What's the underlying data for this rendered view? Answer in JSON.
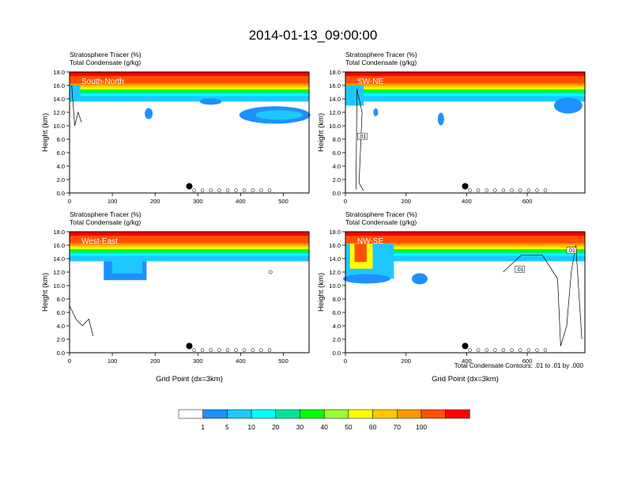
{
  "figure": {
    "title": "2014-01-13_09:00:00",
    "contour_note": "Total Condensate Contours: .01 to .01 by .000"
  },
  "colorbar": {
    "labels": [
      "1",
      "5",
      "10",
      "20",
      "30",
      "40",
      "50",
      "60",
      "70",
      "100"
    ],
    "colors": [
      "#ffffff",
      "#1e90ff",
      "#1ec8ff",
      "#00ffff",
      "#00e696",
      "#00ff00",
      "#96ff32",
      "#ffff00",
      "#ffc800",
      "#ff9600",
      "#ff5000",
      "#ff0000"
    ]
  },
  "chart_data": [
    {
      "type": "heatmap",
      "panel": "South-North",
      "title": "Stratosphere Tracer   (%)",
      "subtitle": "Total Condensate   (g/kg)",
      "xlabel": "",
      "ylabel": "Height (km)",
      "xlim": [
        0,
        560
      ],
      "ylim": [
        0,
        18
      ],
      "xticks": [
        "0",
        "100",
        "200",
        "300",
        "400",
        "500"
      ],
      "yticks": [
        "0.0",
        "2.0",
        "4.0",
        "6.0",
        "8.0",
        "10.0",
        "12.0",
        "14.0",
        "16.0",
        "18.0"
      ],
      "marker_x": 280,
      "contour_labels": []
    },
    {
      "type": "heatmap",
      "panel": "SW-NE",
      "title": "Stratosphere Tracer   (%)",
      "subtitle": "Total Condensate   (g/kg)",
      "xlabel": "",
      "ylabel": "Height (km)",
      "xlim": [
        0,
        790
      ],
      "ylim": [
        0,
        18
      ],
      "xticks": [
        "0",
        "200",
        "400",
        "600"
      ],
      "yticks": [
        "0.0",
        "2.0",
        "4.0",
        "6.0",
        "8.0",
        "10.0",
        "12.0",
        "14.0",
        "16.0",
        "18.0"
      ],
      "marker_x": 395,
      "contour_labels": [
        ".01"
      ]
    },
    {
      "type": "heatmap",
      "panel": "West-East",
      "title": "Stratosphere Tracer   (%)",
      "subtitle": "Total Condensate   (g/kg)",
      "xlabel": "Grid Point (dx=3km)",
      "ylabel": "Height (km)",
      "xlim": [
        0,
        560
      ],
      "ylim": [
        0,
        18
      ],
      "xticks": [
        "0",
        "100",
        "200",
        "300",
        "400",
        "500"
      ],
      "yticks": [
        "0.0",
        "2.0",
        "4.0",
        "6.0",
        "8.0",
        "10.0",
        "12.0",
        "14.0",
        "16.0",
        "18.0"
      ],
      "marker_x": 280,
      "contour_labels": []
    },
    {
      "type": "heatmap",
      "panel": "NW-SE",
      "title": "Stratosphere Tracer   (%)",
      "subtitle": "Total Condensate   (g/kg)",
      "xlabel": "Grid Point (dx=3km)",
      "ylabel": "Height (km)",
      "xlim": [
        0,
        790
      ],
      "ylim": [
        0,
        18
      ],
      "xticks": [
        "0",
        "200",
        "400",
        "600"
      ],
      "yticks": [
        "0.0",
        "2.0",
        "4.0",
        "6.0",
        "8.0",
        "10.0",
        "12.0",
        "14.0",
        "16.0",
        "18.0"
      ],
      "marker_x": 395,
      "contour_labels": [
        ".01",
        ".01"
      ]
    }
  ]
}
